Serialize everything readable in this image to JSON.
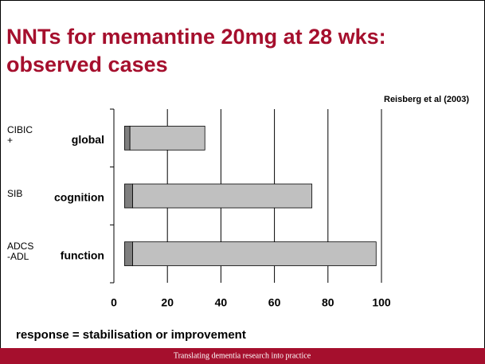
{
  "chart_data": {
    "type": "bar",
    "title_lines": [
      "NNTs for memantine 20mg at 28 wks:",
      "observed cases"
    ],
    "source": "Reisberg et al (2003)",
    "categories": [
      "global",
      "cognition",
      "function"
    ],
    "scales": [
      "CIBIC+",
      "SIB",
      "ADCS-ADL"
    ],
    "starts": [
      4,
      4,
      4
    ],
    "series": [
      {
        "color": "#7f7f7f",
        "values": [
          2,
          3,
          3
        ]
      },
      {
        "color": "#c0c0c0",
        "values": [
          28,
          67,
          91
        ]
      }
    ],
    "xlim": [
      0,
      100
    ],
    "xticks": [
      0,
      20,
      40,
      60,
      80,
      100
    ],
    "grid": true,
    "note": "response = stabilisation or improvement",
    "footer": "Translating dementia research into practice"
  }
}
